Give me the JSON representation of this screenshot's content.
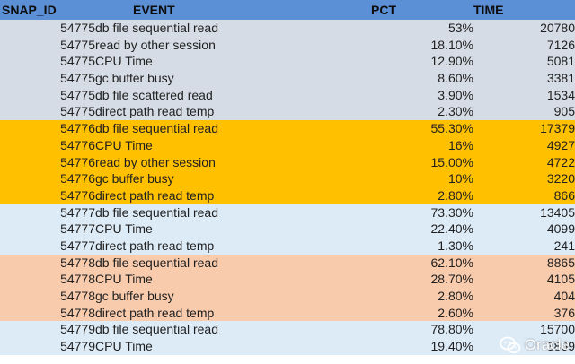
{
  "headers": {
    "snap_id": "SNAP_ID",
    "event": "EVENT",
    "pct": "PCT",
    "time": "TIME"
  },
  "colors": {
    "header": "#5b8fd6",
    "group_54775": "#d6dce5",
    "group_54776": "#ffc000",
    "group_54777": "#ddebf7",
    "group_54778": "#f8cbad",
    "group_54779": "#ddebf7"
  },
  "rows": [
    {
      "snap_id": "54775",
      "event": "db file sequential read",
      "pct": "53%",
      "time": "20780",
      "group": "54775"
    },
    {
      "snap_id": "54775",
      "event": "read by other session",
      "pct": "18.10%",
      "time": "7126",
      "group": "54775"
    },
    {
      "snap_id": "54775",
      "event": "CPU Time",
      "pct": "12.90%",
      "time": "5081",
      "group": "54775"
    },
    {
      "snap_id": "54775",
      "event": "gc buffer busy",
      "pct": "8.60%",
      "time": "3381",
      "group": "54775"
    },
    {
      "snap_id": "54775",
      "event": "db file scattered read",
      "pct": "3.90%",
      "time": "1534",
      "group": "54775"
    },
    {
      "snap_id": "54775",
      "event": "direct path read temp",
      "pct": "2.30%",
      "time": "905",
      "group": "54775"
    },
    {
      "snap_id": "54776",
      "event": "db file sequential read",
      "pct": "55.30%",
      "time": "17379",
      "group": "54776"
    },
    {
      "snap_id": "54776",
      "event": "CPU Time",
      "pct": "16%",
      "time": "4927",
      "group": "54776"
    },
    {
      "snap_id": "54776",
      "event": "read by other session",
      "pct": "15.00%",
      "time": "4722",
      "group": "54776"
    },
    {
      "snap_id": "54776",
      "event": "gc buffer busy",
      "pct": "10%",
      "time": "3220",
      "group": "54776"
    },
    {
      "snap_id": "54776",
      "event": "direct path read temp",
      "pct": "2.80%",
      "time": "866",
      "group": "54776"
    },
    {
      "snap_id": "54777",
      "event": "db file sequential read",
      "pct": "73.30%",
      "time": "13405",
      "group": "54777"
    },
    {
      "snap_id": "54777",
      "event": "CPU Time",
      "pct": "22.40%",
      "time": "4099",
      "group": "54777"
    },
    {
      "snap_id": "54777",
      "event": "direct path read temp",
      "pct": "1.30%",
      "time": "241",
      "group": "54777"
    },
    {
      "snap_id": "54778",
      "event": "db file sequential read",
      "pct": "62.10%",
      "time": "8865",
      "group": "54778"
    },
    {
      "snap_id": "54778",
      "event": "CPU Time",
      "pct": "28.70%",
      "time": "4105",
      "group": "54778"
    },
    {
      "snap_id": "54778",
      "event": "gc buffer busy",
      "pct": "2.80%",
      "time": "404",
      "group": "54778"
    },
    {
      "snap_id": "54778",
      "event": "direct path read temp",
      "pct": "2.60%",
      "time": "376",
      "group": "54778"
    },
    {
      "snap_id": "54779",
      "event": "db file sequential read",
      "pct": "78.80%",
      "time": "15700",
      "group": "54779"
    },
    {
      "snap_id": "54779",
      "event": "CPU Time",
      "pct": "19.40%",
      "time": "3869",
      "group": "54779"
    }
  ],
  "watermark": {
    "text": "Oracle",
    "icon": "wechat-icon"
  }
}
